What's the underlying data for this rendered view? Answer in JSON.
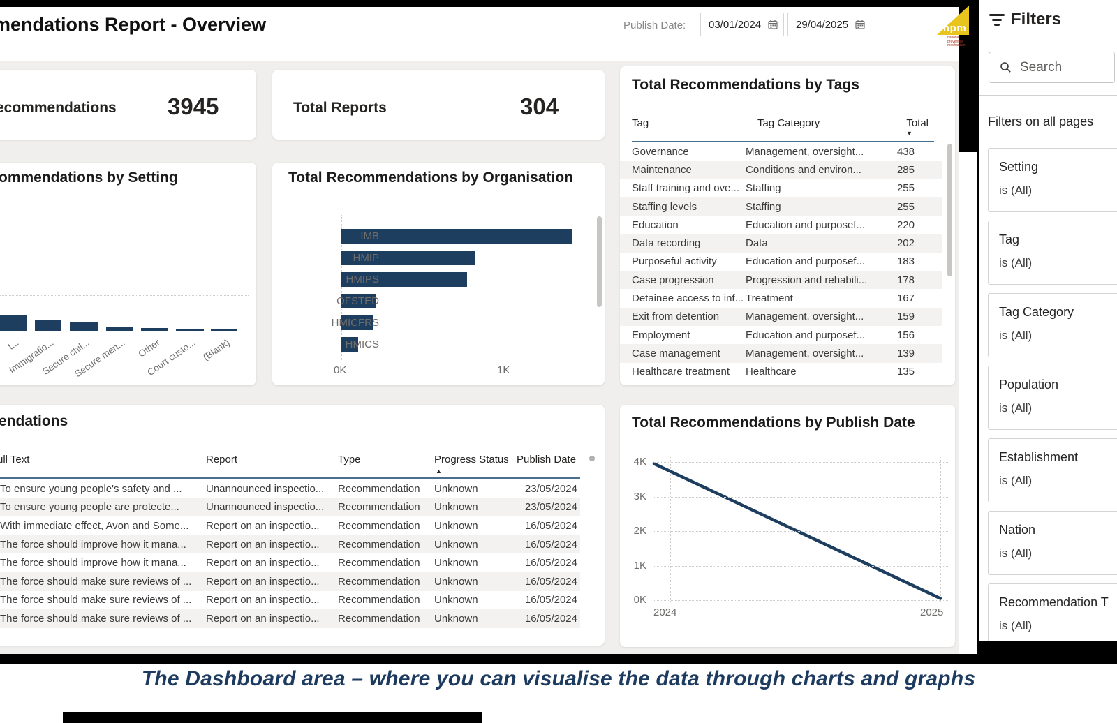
{
  "header": {
    "title": "mendations Report - Overview",
    "publish_date_label": "Publish Date:",
    "date_from": "03/01/2024",
    "date_to": "29/04/2025",
    "logo": {
      "text": "npm",
      "sub_lines": "national preventive mechanism"
    }
  },
  "kpis": {
    "recommendations": {
      "label": "ecommendations",
      "value": "3945"
    },
    "reports": {
      "label": "Total Reports",
      "value": "304"
    }
  },
  "tags_table": {
    "title": "Total Recommendations by Tags",
    "columns": [
      "Tag",
      "Tag Category",
      "Total"
    ],
    "sort_indicator": "▼",
    "rows": [
      {
        "tag": "Governance",
        "category": "Management, oversight...",
        "total": "438"
      },
      {
        "tag": "Maintenance",
        "category": "Conditions and environ...",
        "total": "285"
      },
      {
        "tag": "Staff training and ove...",
        "category": "Staffing",
        "total": "255"
      },
      {
        "tag": "Staffing levels",
        "category": "Staffing",
        "total": "255"
      },
      {
        "tag": "Education",
        "category": "Education and purposef...",
        "total": "220"
      },
      {
        "tag": "Data recording",
        "category": "Data",
        "total": "202"
      },
      {
        "tag": "Purposeful activity",
        "category": "Education and purposef...",
        "total": "183"
      },
      {
        "tag": "Case progression",
        "category": "Progression and rehabili...",
        "total": "178"
      },
      {
        "tag": "Detainee access to inf...",
        "category": "Treatment",
        "total": "167"
      },
      {
        "tag": "Exit from detention",
        "category": "Management, oversight...",
        "total": "159"
      },
      {
        "tag": "Employment",
        "category": "Education and purposef...",
        "total": "156"
      },
      {
        "tag": "Case management",
        "category": "Management, oversight...",
        "total": "139"
      },
      {
        "tag": "Healthcare treatment",
        "category": "Healthcare",
        "total": "135"
      }
    ]
  },
  "recs_table": {
    "title": "endations",
    "columns": [
      "ull Text",
      "Report",
      "Type",
      "Progress Status",
      "Publish Date"
    ],
    "sort_indicator": "▲",
    "rows": [
      {
        "full_text": "To ensure young people's safety and ...",
        "report": "Unannounced inspectio...",
        "type": "Recommendation",
        "status": "Unknown",
        "date": "23/05/2024"
      },
      {
        "full_text": "To ensure young people are protecte...",
        "report": "Unannounced inspectio...",
        "type": "Recommendation",
        "status": "Unknown",
        "date": "23/05/2024"
      },
      {
        "full_text": "With immediate effect, Avon and Some...",
        "report": "Report on an inspectio...",
        "type": "Recommendation",
        "status": "Unknown",
        "date": "16/05/2024"
      },
      {
        "full_text": "The force should improve how it mana...",
        "report": "Report on an inspectio...",
        "type": "Recommendation",
        "status": "Unknown",
        "date": "16/05/2024"
      },
      {
        "full_text": "The force should improve how it mana...",
        "report": "Report on an inspectio...",
        "type": "Recommendation",
        "status": "Unknown",
        "date": "16/05/2024"
      },
      {
        "full_text": "The force should make sure reviews of ...",
        "report": "Report on an inspectio...",
        "type": "Recommendation",
        "status": "Unknown",
        "date": "16/05/2024"
      },
      {
        "full_text": "The force should make sure reviews of ...",
        "report": "Report on an inspectio...",
        "type": "Recommendation",
        "status": "Unknown",
        "date": "16/05/2024"
      },
      {
        "full_text": "The force should make sure reviews of ...",
        "report": "Report on an inspectio...",
        "type": "Recommendation",
        "status": "Unknown",
        "date": "16/05/2024"
      }
    ]
  },
  "chart_data": [
    {
      "id": "setting",
      "type": "bar",
      "title": "ommendations by Setting",
      "categories": [
        "t...",
        "Immigratio...",
        "Secure chil...",
        "Secure men...",
        "Other",
        "Court custo...",
        "(Blank)"
      ],
      "values": [
        430,
        290,
        255,
        100,
        80,
        60,
        30
      ],
      "ylim": [
        0,
        3000
      ],
      "grid": "dotted",
      "note": "left portion of chart and y-axis cut off at screenshot edge"
    },
    {
      "id": "organisation",
      "type": "bar",
      "orientation": "horizontal",
      "title": "Total Recommendations by Organisation",
      "categories": [
        "IMB",
        "HMIP",
        "HMIPS",
        "OFSTED",
        "HMICFRS",
        "HMICS"
      ],
      "values": [
        1410,
        815,
        765,
        210,
        190,
        100
      ],
      "xlim": [
        0,
        1500
      ],
      "x_ticks": [
        "0K",
        "1K"
      ],
      "grid": "dotted"
    },
    {
      "id": "publish_date",
      "type": "line",
      "title": "Total Recommendations by Publish Date",
      "x": [
        "2024",
        "2025"
      ],
      "values": [
        3950,
        50
      ],
      "ylim": [
        0,
        4000
      ],
      "y_ticks": [
        "0K",
        "1K",
        "2K",
        "3K",
        "4K"
      ],
      "grid": "dotted"
    }
  ],
  "filters_panel": {
    "title": "Filters",
    "search_placeholder": "Search",
    "section_label": "Filters on all pages",
    "filters": [
      {
        "name": "Setting",
        "value": "is (All)"
      },
      {
        "name": "Tag",
        "value": "is (All)"
      },
      {
        "name": "Tag Category",
        "value": "is (All)"
      },
      {
        "name": "Population",
        "value": "is (All)"
      },
      {
        "name": "Establishment",
        "value": "is (All)"
      },
      {
        "name": "Nation",
        "value": "is (All)"
      },
      {
        "name": "Recommendation T",
        "value": "is (All)"
      }
    ]
  },
  "caption": "The Dashboard area – where you can visualise the data through charts and graphs",
  "colors": {
    "accent": "#1e3e5f",
    "header_rule": "#48708e",
    "logo_yellow": "#e7c41e",
    "caption_navy": "#1d3a5f"
  }
}
